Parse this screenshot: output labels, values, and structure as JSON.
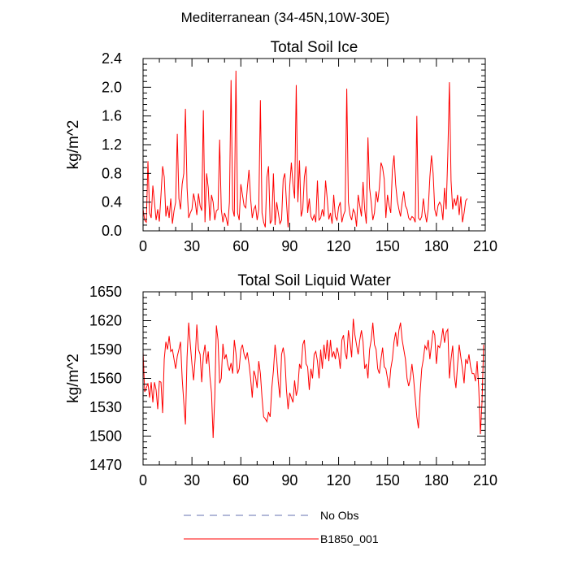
{
  "figure_title": "Mediterranean (34-45N,10W-30E)",
  "legend": {
    "entries": [
      {
        "label": "No Obs",
        "color": "#6670b0",
        "style": "dashed"
      },
      {
        "label": "B1850_001",
        "color": "#ff0000",
        "style": "solid"
      }
    ]
  },
  "colors": {
    "series": "#ff0000",
    "axes": "#000000"
  },
  "chart_data": [
    {
      "type": "line",
      "title": "Total Soil Ice",
      "xlabel": "",
      "ylabel": "kg/m^2",
      "xlim": [
        0,
        210
      ],
      "ylim": [
        0,
        2.4
      ],
      "xticks": [
        0,
        30,
        60,
        90,
        120,
        150,
        180,
        210
      ],
      "yticks": [
        0,
        0.4,
        0.8,
        1.2,
        1.6,
        2.0,
        2.4
      ],
      "xtick_labels": [
        "0",
        "30",
        "60",
        "90",
        "120",
        "150",
        "180",
        "210"
      ],
      "ytick_labels": [
        "0.0",
        "0.4",
        "0.8",
        "1.2",
        "1.6",
        "2.0",
        "2.4"
      ],
      "series": [
        {
          "name": "B1850_001",
          "x_start": 0,
          "x_step": 1,
          "values": [
            0.3,
            0.15,
            0.12,
            0.97,
            0.25,
            0.18,
            0.63,
            0.4,
            0.15,
            0.3,
            0.13,
            0.5,
            0.9,
            0.75,
            0.2,
            0.35,
            0.18,
            0.45,
            0.1,
            0.28,
            0.4,
            1.35,
            0.45,
            0.3,
            0.65,
            0.8,
            1.7,
            0.6,
            0.18,
            0.25,
            0.3,
            0.52,
            0.4,
            0.22,
            0.52,
            0.35,
            0.28,
            1.68,
            0.12,
            0.8,
            0.6,
            0.14,
            0.5,
            0.4,
            0.15,
            0.28,
            0.3,
            1.27,
            0.3,
            0.12,
            0.25,
            0.18,
            0.07,
            0.4,
            2.1,
            0.3,
            0.2,
            2.23,
            0.25,
            0.15,
            0.65,
            0.5,
            0.35,
            0.32,
            0.6,
            0.85,
            0.45,
            0.18,
            0.3,
            0.35,
            0.15,
            0.3,
            1.82,
            0.25,
            0.12,
            0.05,
            0.75,
            0.9,
            0.1,
            0.15,
            0.8,
            0.08,
            0.4,
            0.25,
            0.1,
            0.15,
            0.72,
            0.8,
            0.4,
            0.05,
            0.62,
            0.95,
            0.65,
            0.45,
            2.03,
            0.4,
            0.98,
            0.2,
            0.3,
            0.75,
            0.9,
            0.25,
            0.45,
            0.2,
            0.15,
            0.22,
            0.12,
            0.7,
            0.15,
            0.18,
            0.3,
            0.2,
            0.7,
            0.45,
            0.16,
            0.25,
            0.1,
            0.5,
            0.2,
            0.15,
            0.33,
            0.4,
            0.12,
            0.22,
            0.28,
            1.98,
            0.4,
            0.22,
            0.15,
            0.3,
            0.25,
            0.06,
            0.5,
            0.35,
            0.2,
            0.68,
            0.3,
            0.1,
            1.3,
            0.6,
            0.4,
            0.15,
            0.25,
            0.55,
            0.4,
            0.6,
            0.95,
            0.88,
            0.72,
            0.18,
            0.5,
            0.35,
            0.25,
            0.85,
            1.05,
            0.65,
            0.42,
            0.3,
            0.2,
            0.4,
            0.55,
            0.35,
            0.3,
            0.18,
            0.15,
            0.2,
            0.18,
            0.12,
            1.6,
            0.18,
            0.15,
            0.2,
            0.45,
            0.25,
            0.12,
            0.3,
            0.75,
            1.05,
            0.8,
            0.3,
            0.2,
            0.35,
            0.4,
            0.35,
            0.15,
            0.6,
            0.3,
            1.05,
            2.07,
            0.7,
            0.3,
            0.45,
            0.35,
            0.5,
            0.22,
            0.48,
            0.12,
            0.25,
            0.42,
            0.45
          ]
        }
      ]
    },
    {
      "type": "line",
      "title": "Total Soil Liquid Water",
      "xlabel": "",
      "ylabel": "kg/m^2",
      "xlim": [
        0,
        210
      ],
      "ylim": [
        1470,
        1650
      ],
      "xticks": [
        0,
        30,
        60,
        90,
        120,
        150,
        180,
        210
      ],
      "yticks": [
        1470,
        1500,
        1530,
        1560,
        1590,
        1620,
        1650
      ],
      "xtick_labels": [
        "0",
        "30",
        "60",
        "90",
        "120",
        "150",
        "180",
        "210"
      ],
      "ytick_labels": [
        "1470",
        "1500",
        "1530",
        "1560",
        "1590",
        "1620",
        "1650"
      ],
      "series": [
        {
          "name": "B1850_001",
          "x_start": 0,
          "x_step": 1,
          "values": [
            1588,
            1546,
            1550,
            1555,
            1540,
            1556,
            1535,
            1556,
            1548,
            1528,
            1557,
            1556,
            1524,
            1580,
            1598,
            1590,
            1604,
            1588,
            1590,
            1580,
            1570,
            1583,
            1590,
            1598,
            1560,
            1535,
            1512,
            1582,
            1618,
            1595,
            1575,
            1558,
            1581,
            1616,
            1590,
            1585,
            1556,
            1584,
            1595,
            1575,
            1588,
            1562,
            1545,
            1498,
            1540,
            1615,
            1600,
            1555,
            1560,
            1596,
            1580,
            1585,
            1574,
            1568,
            1576,
            1565,
            1600,
            1586,
            1565,
            1570,
            1590,
            1595,
            1585,
            1580,
            1587,
            1575,
            1560,
            1540,
            1568,
            1562,
            1550,
            1578,
            1565,
            1540,
            1520,
            1518,
            1515,
            1525,
            1520,
            1550,
            1568,
            1595,
            1580,
            1556,
            1540,
            1585,
            1592,
            1581,
            1548,
            1528,
            1545,
            1540,
            1535,
            1558,
            1542,
            1550,
            1575,
            1570,
            1595,
            1600,
            1575,
            1572,
            1548,
            1570,
            1560,
            1585,
            1588,
            1578,
            1560,
            1590,
            1570,
            1595,
            1580,
            1600,
            1578,
            1600,
            1582,
            1588,
            1580,
            1592,
            1585,
            1570,
            1600,
            1605,
            1587,
            1580,
            1610,
            1598,
            1582,
            1622,
            1605,
            1595,
            1585,
            1600,
            1610,
            1598,
            1570,
            1575,
            1560,
            1590,
            1600,
            1618,
            1595,
            1590,
            1570,
            1565,
            1580,
            1592,
            1572,
            1570,
            1560,
            1550,
            1570,
            1580,
            1598,
            1608,
            1593,
            1610,
            1618,
            1600,
            1590,
            1580,
            1560,
            1552,
            1560,
            1575,
            1560,
            1540,
            1520,
            1508,
            1545,
            1570,
            1580,
            1594,
            1590,
            1600,
            1580,
            1595,
            1610,
            1605,
            1575,
            1594,
            1592,
            1600,
            1612,
            1597,
            1608,
            1611,
            1560,
            1580,
            1594,
            1563,
            1550,
            1574,
            1595,
            1582,
            1570,
            1555,
            1580,
            1575,
            1585,
            1572,
            1565,
            1565,
            1557,
            1578,
            1550,
            1502,
            1535,
            1595
          ]
        }
      ]
    }
  ]
}
